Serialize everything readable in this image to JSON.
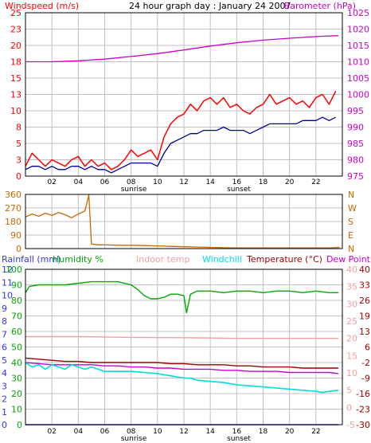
{
  "page": {
    "title": "24 hour graph day : January 24 2007"
  },
  "colors": {
    "background": "#ffffff",
    "frame": "#000000",
    "grid": "#c0c0c0",
    "windspeed": "#ff0000",
    "avg_wind": "#000099",
    "barometer": "#cc00cc",
    "wind_direction": "#cc6600",
    "rainfall": "#3333ff",
    "humidity": "#00aa00",
    "indoor_temp": "#f2a0a0",
    "windchill": "#00dddd",
    "temperature": "#990000",
    "dew_point": "#cc00cc"
  },
  "chart_data": [
    {
      "type": "line",
      "panel": "wind_barometer",
      "title": "24 hour graph day : January 24 2007",
      "left_axis_label": "Windspeed (m/s)",
      "right_axis_label": "Barometer (hPa)",
      "left_ticks": [
        "0",
        "3",
        "5",
        "8",
        "10",
        "13",
        "15",
        "18",
        "20",
        "23",
        "25"
      ],
      "left_ylim": [
        0,
        25
      ],
      "right_ticks": [
        "975",
        "980",
        "985",
        "990",
        "995",
        "1000",
        "1005",
        "1010",
        "1015",
        "1020",
        "1025"
      ],
      "right_ylim": [
        975,
        1025
      ],
      "x_ticks": [
        "02",
        "04",
        "06",
        "08",
        "10",
        "12",
        "14",
        "16",
        "18",
        "20",
        "22"
      ],
      "xlim": [
        0,
        24
      ],
      "markers": [
        "sunrise",
        "sunset"
      ],
      "grid": true,
      "series": [
        {
          "key": "windspeed",
          "x": [
            0,
            0.5,
            1,
            1.5,
            2,
            2.5,
            3,
            3.5,
            4,
            4.5,
            5,
            5.5,
            6,
            6.5,
            7,
            7.5,
            8,
            8.5,
            9,
            9.5,
            10,
            10.5,
            11,
            11.5,
            12,
            12.5,
            13,
            13.5,
            14,
            14.5,
            15,
            15.5,
            16,
            16.5,
            17,
            17.5,
            18,
            18.5,
            19,
            19.5,
            20,
            20.5,
            21,
            21.5,
            22,
            22.5,
            23,
            23.5
          ],
          "values": [
            1.5,
            3.5,
            2.5,
            1.5,
            2.5,
            2,
            1.5,
            2.5,
            3,
            1.5,
            2.5,
            1.5,
            2,
            1,
            1.5,
            2.5,
            4,
            3,
            3.5,
            4,
            2.5,
            6,
            8,
            9,
            9.5,
            11,
            10,
            11.5,
            12,
            11,
            12,
            10.5,
            11,
            10,
            9.5,
            10.5,
            11,
            12.5,
            11,
            11.5,
            12,
            11,
            11.5,
            10.5,
            12,
            12.5,
            11,
            13
          ]
        },
        {
          "key": "avg_wind",
          "x": [
            0,
            0.5,
            1,
            1.5,
            2,
            2.5,
            3,
            3.5,
            4,
            4.5,
            5,
            5.5,
            6,
            6.5,
            7,
            7.5,
            8,
            8.5,
            9,
            9.5,
            10,
            10.5,
            11,
            11.5,
            12,
            12.5,
            13,
            13.5,
            14,
            14.5,
            15,
            15.5,
            16,
            16.5,
            17,
            17.5,
            18,
            18.5,
            19,
            19.5,
            20,
            20.5,
            21,
            21.5,
            22,
            22.5,
            23,
            23.5
          ],
          "values": [
            1,
            1.5,
            1.5,
            1,
            1.5,
            1,
            1,
            1.5,
            1.5,
            1,
            1.5,
            1,
            1,
            0.5,
            1,
            1.5,
            2,
            2,
            2,
            2,
            1.5,
            3.5,
            5,
            5.5,
            6,
            6.5,
            6.5,
            7,
            7,
            7,
            7.5,
            7,
            7,
            7,
            6.5,
            7,
            7.5,
            8,
            8,
            8,
            8,
            8,
            8.5,
            8.5,
            8.5,
            9,
            8.5,
            9
          ]
        },
        {
          "key": "barometer",
          "axis": "right",
          "x": [
            0,
            2,
            4,
            6,
            8,
            10,
            12,
            14,
            16,
            18,
            20,
            22,
            23.7
          ],
          "values": [
            1010,
            1010,
            1010.3,
            1010.8,
            1011.6,
            1012.5,
            1013.6,
            1014.8,
            1015.8,
            1016.6,
            1017.2,
            1017.7,
            1018
          ]
        }
      ]
    },
    {
      "type": "line",
      "panel": "wind_direction",
      "left_ticks": [
        "0",
        "90",
        "180",
        "270",
        "360"
      ],
      "ylim": [
        0,
        360
      ],
      "right_labels": [
        "N",
        "W",
        "S",
        "E",
        "N"
      ],
      "x_ticks": [
        "02",
        "04",
        "06",
        "08",
        "10",
        "12",
        "14",
        "16",
        "18",
        "20",
        "22"
      ],
      "xlim": [
        0,
        24
      ],
      "grid": true,
      "series": [
        {
          "key": "wind_direction",
          "x": [
            0,
            0.5,
            1,
            1.5,
            2,
            2.5,
            3,
            3.5,
            4,
            4.5,
            4.8,
            5,
            5.5,
            6,
            7,
            8,
            9,
            10,
            11,
            12,
            13,
            14,
            15,
            16,
            17,
            18,
            19,
            20,
            21,
            22,
            23,
            23.8
          ],
          "values": [
            210,
            230,
            215,
            235,
            220,
            240,
            225,
            205,
            230,
            250,
            355,
            30,
            25,
            25,
            22,
            22,
            20,
            18,
            15,
            12,
            10,
            8,
            6,
            5,
            5,
            5,
            5,
            4,
            4,
            4,
            5,
            8
          ]
        }
      ]
    },
    {
      "type": "line",
      "panel": "temperature_humidity",
      "labels": [
        "Rainfall (mm)",
        "Humidity %",
        "Indoor temp",
        "Windchill",
        "Temperature (°C)",
        "Dew Point"
      ],
      "rainfall_ticks": [
        "0",
        "1",
        "2",
        "3",
        "4",
        "5",
        "6",
        "7",
        "8",
        "9",
        "10",
        "11",
        "12"
      ],
      "humidity_ticks": [
        "0",
        "10",
        "20",
        "30",
        "40",
        "50",
        "60",
        "70",
        "80",
        "90",
        "100"
      ],
      "indoor_ticks": [
        "-5",
        "0",
        "5",
        "10",
        "15",
        "20",
        "25",
        "30",
        "35",
        "40"
      ],
      "temp_ticks": [
        "-30",
        "-23",
        "-16",
        "-9",
        "-2",
        "6",
        "13",
        "19",
        "26",
        "33",
        "40"
      ],
      "temp_ylim": [
        -30,
        40
      ],
      "humidity_ylim": [
        0,
        100
      ],
      "x_ticks": [
        "02",
        "04",
        "06",
        "08",
        "10",
        "12",
        "14",
        "16",
        "18",
        "20",
        "22"
      ],
      "xlim": [
        0,
        24
      ],
      "markers": [
        "sunrise",
        "sunset"
      ],
      "grid": true,
      "series": [
        {
          "key": "humidity",
          "axis": "humidity",
          "x": [
            0,
            0.3,
            1,
            2,
            3,
            4,
            5,
            6,
            7,
            8,
            8.5,
            9,
            9.5,
            10,
            10.5,
            11,
            11.5,
            12,
            12.2,
            12.5,
            13,
            14,
            15,
            16,
            17,
            18,
            19,
            20,
            21,
            22,
            23,
            23.7
          ],
          "values": [
            85,
            89,
            90,
            90,
            90,
            91,
            92,
            92,
            92,
            90,
            87,
            83,
            81,
            81,
            82,
            84,
            84,
            83,
            72,
            84,
            86,
            86,
            85,
            86,
            86,
            85,
            86,
            86,
            85,
            86,
            85,
            85
          ]
        },
        {
          "key": "indoor_temp",
          "axis": "indoor",
          "x": [
            0,
            4,
            8,
            12,
            16,
            20,
            23.7
          ],
          "values": [
            20.5,
            20.5,
            20.3,
            20.2,
            20,
            20,
            20
          ]
        },
        {
          "key": "temperature",
          "axis": "temp",
          "x": [
            0,
            1,
            2,
            3,
            4,
            5,
            6,
            7,
            8,
            9,
            10,
            11,
            12,
            13,
            14,
            15,
            16,
            17,
            18,
            19,
            20,
            21,
            22,
            23,
            23.7
          ],
          "values": [
            0,
            -0.5,
            -1,
            -1.5,
            -1.5,
            -2,
            -2,
            -2,
            -2,
            -2,
            -2,
            -2.5,
            -2.5,
            -3,
            -3,
            -3,
            -3.5,
            -3.5,
            -4,
            -4,
            -4,
            -4.5,
            -4.5,
            -4.5,
            -4.5
          ]
        },
        {
          "key": "dew_point",
          "axis": "temp",
          "x": [
            0,
            1,
            2,
            3,
            4,
            5,
            6,
            7,
            8,
            9,
            10,
            11,
            12,
            13,
            14,
            15,
            16,
            17,
            18,
            19,
            20,
            21,
            22,
            23,
            23.7
          ],
          "values": [
            -2,
            -2.5,
            -3,
            -3,
            -3,
            -3,
            -3.5,
            -3.5,
            -4,
            -4,
            -4.5,
            -4.5,
            -5,
            -5,
            -5,
            -5.5,
            -5.5,
            -6,
            -6,
            -6,
            -6.5,
            -6.5,
            -6.5,
            -6.5,
            -7
          ]
        },
        {
          "key": "windchill",
          "axis": "temp",
          "x": [
            0,
            0.5,
            1,
            1.5,
            2,
            2.5,
            3,
            3.5,
            4,
            4.5,
            5,
            5.5,
            6,
            7,
            8,
            9,
            10,
            11,
            12,
            12.5,
            13,
            14,
            15,
            16,
            17,
            18,
            19,
            20,
            21,
            22,
            22.5,
            23,
            23.7
          ],
          "values": [
            -2,
            -4,
            -3,
            -5,
            -3,
            -4,
            -5,
            -3,
            -4,
            -5,
            -4,
            -5,
            -6,
            -6,
            -6,
            -6.5,
            -7,
            -8,
            -9,
            -9,
            -10,
            -10.5,
            -11,
            -12,
            -12.5,
            -13,
            -13.5,
            -14,
            -14.5,
            -15,
            -15.5,
            -15,
            -14.5
          ]
        },
        {
          "key": "rainfall",
          "axis": "rainfall",
          "x": [
            0,
            23.7
          ],
          "values": [
            0,
            0
          ]
        }
      ]
    }
  ]
}
